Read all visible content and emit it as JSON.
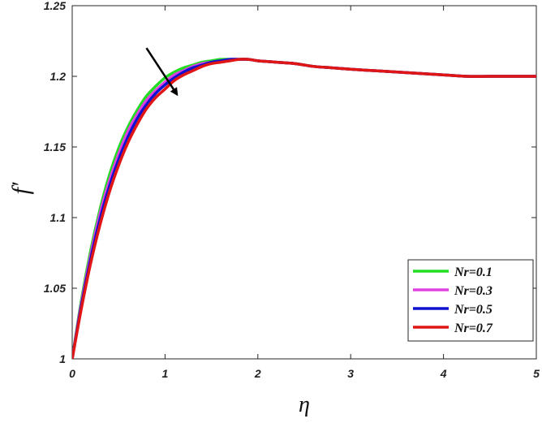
{
  "chart_data": {
    "type": "line",
    "xlabel": "η",
    "ylabel": "f′",
    "xlim": [
      0,
      5
    ],
    "ylim": [
      1,
      1.25
    ],
    "xticks": [
      0,
      1,
      2,
      3,
      4,
      5
    ],
    "xtick_labels": [
      "0",
      "1",
      "2",
      "3",
      "4",
      "5"
    ],
    "yticks": [
      1,
      1.05,
      1.1,
      1.15,
      1.2,
      1.25
    ],
    "ytick_labels": [
      "1",
      "1.05",
      "1.1",
      "1.15",
      "1.2",
      "1.25"
    ],
    "grid": false,
    "legend_position": "bottom-right",
    "x": [
      0,
      0.1,
      0.2,
      0.3,
      0.4,
      0.5,
      0.6,
      0.7,
      0.8,
      0.9,
      1.0,
      1.1,
      1.2,
      1.3,
      1.4,
      1.5,
      1.6,
      1.7,
      1.8,
      1.9,
      2.0,
      2.2,
      2.4,
      2.6,
      2.8,
      3.0,
      3.25,
      3.5,
      3.75,
      4.0,
      4.25,
      4.5,
      4.75,
      5.0
    ],
    "series": [
      {
        "name": "Nr=0.1",
        "color": "#22dd22",
        "values": [
          1.0,
          1.042,
          1.077,
          1.106,
          1.13,
          1.149,
          1.164,
          1.176,
          1.186,
          1.193,
          1.199,
          1.203,
          1.206,
          1.208,
          1.21,
          1.211,
          1.212,
          1.212,
          1.212,
          1.212,
          1.211,
          1.21,
          1.209,
          1.207,
          1.206,
          1.205,
          1.204,
          1.203,
          1.202,
          1.201,
          1.2,
          1.2,
          1.2,
          1.2
        ]
      },
      {
        "name": "Nr=0.3",
        "color": "#e040e0",
        "values": [
          1.0,
          1.04,
          1.074,
          1.103,
          1.126,
          1.145,
          1.161,
          1.173,
          1.183,
          1.19,
          1.196,
          1.201,
          1.204,
          1.207,
          1.209,
          1.21,
          1.211,
          1.212,
          1.212,
          1.212,
          1.211,
          1.21,
          1.209,
          1.207,
          1.206,
          1.205,
          1.204,
          1.203,
          1.202,
          1.201,
          1.2,
          1.2,
          1.2,
          1.2
        ]
      },
      {
        "name": "Nr=0.5",
        "color": "#1010d0",
        "values": [
          1.0,
          1.038,
          1.071,
          1.099,
          1.122,
          1.141,
          1.157,
          1.17,
          1.18,
          1.188,
          1.194,
          1.199,
          1.203,
          1.206,
          1.208,
          1.21,
          1.211,
          1.212,
          1.212,
          1.212,
          1.211,
          1.21,
          1.209,
          1.207,
          1.206,
          1.205,
          1.204,
          1.203,
          1.202,
          1.201,
          1.2,
          1.2,
          1.2,
          1.2
        ]
      },
      {
        "name": "Nr=0.7",
        "color": "#e01515",
        "values": [
          1.0,
          1.036,
          1.068,
          1.095,
          1.118,
          1.137,
          1.153,
          1.166,
          1.177,
          1.185,
          1.191,
          1.197,
          1.201,
          1.204,
          1.207,
          1.209,
          1.21,
          1.211,
          1.212,
          1.212,
          1.211,
          1.21,
          1.209,
          1.207,
          1.206,
          1.205,
          1.204,
          1.203,
          1.202,
          1.201,
          1.2,
          1.2,
          1.2,
          1.2
        ]
      }
    ],
    "arrow_annotation": {
      "from": [
        0.8,
        1.22
      ],
      "to": [
        1.13,
        1.187
      ]
    }
  }
}
